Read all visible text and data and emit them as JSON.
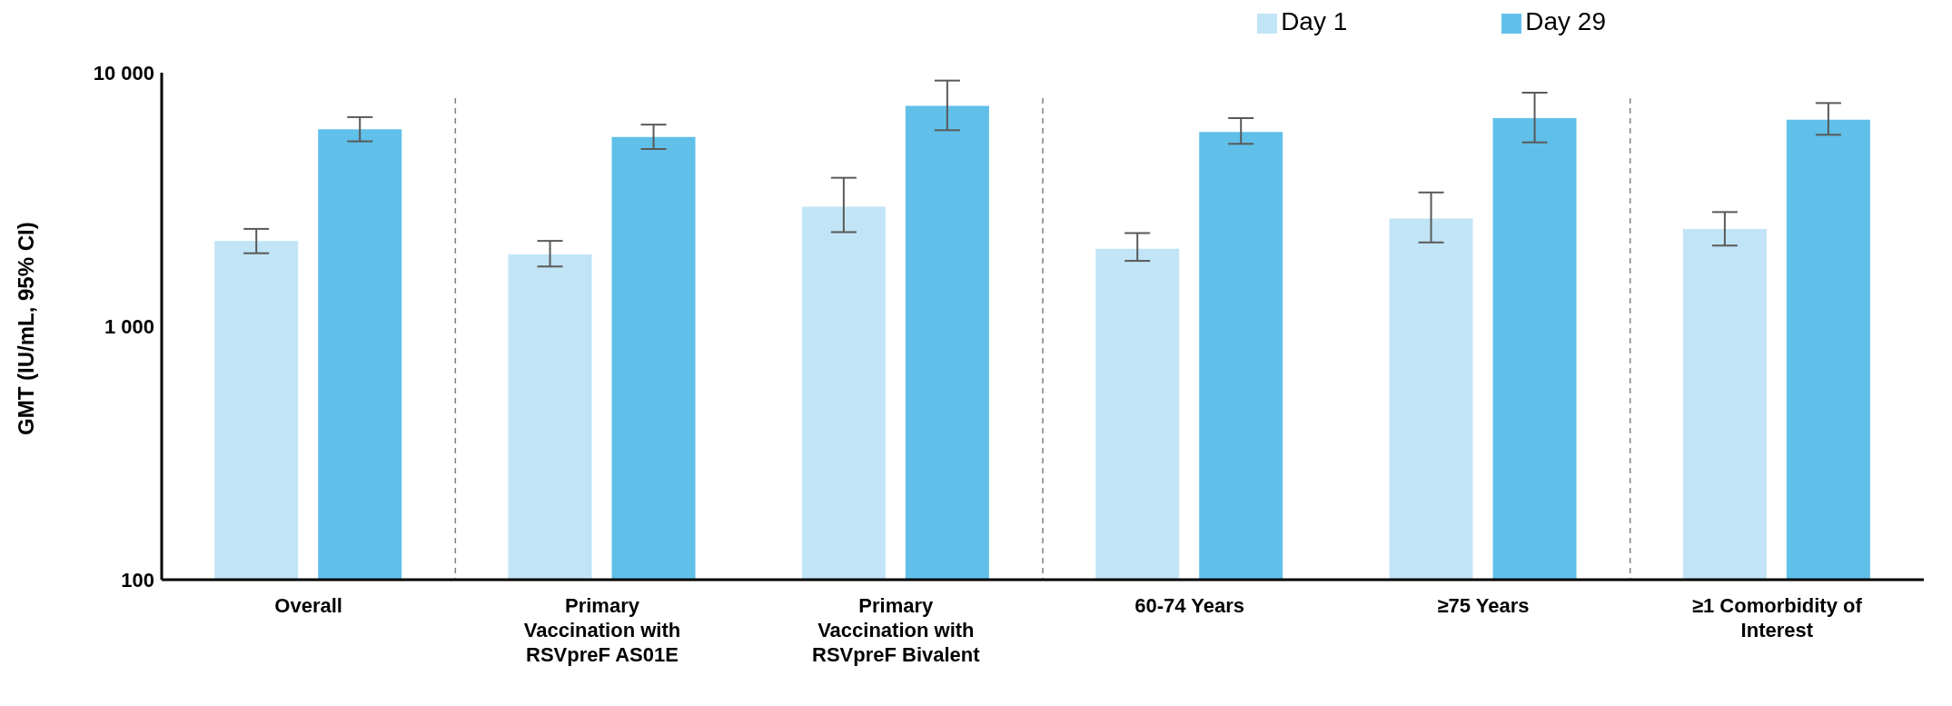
{
  "chart_data": {
    "type": "bar",
    "ylabel": "GMT (IU/mL, 95% CI)",
    "categories": [
      "Overall",
      "Primary Vaccination with RSVpreF AS01E",
      "Primary Vaccination with RSVpreF Bivalent",
      "60-74 Years",
      "≥75 Years",
      "≥1 Comorbidity of Interest"
    ],
    "series": [
      {
        "name": "Day 1",
        "color": "#c1e5f6",
        "values": [
          2170,
          1920,
          2960,
          2020,
          2660,
          2420
        ],
        "errors": [
          [
            1940,
            2420
          ],
          [
            1720,
            2170
          ],
          [
            2350,
            3850
          ],
          [
            1810,
            2330
          ],
          [
            2140,
            3370
          ],
          [
            2080,
            2820
          ]
        ]
      },
      {
        "name": "Day 29",
        "color": "#60c0e9",
        "values": [
          5980,
          5580,
          7400,
          5840,
          6620,
          6520
        ],
        "errors": [
          [
            5360,
            6680
          ],
          [
            5000,
            6240
          ],
          [
            5930,
            9310
          ],
          [
            5240,
            6620
          ],
          [
            5310,
            8340
          ],
          [
            5690,
            7590
          ]
        ]
      }
    ],
    "log": true,
    "ylim": [
      100,
      10000
    ],
    "yticks": [
      100,
      {
        "value": 1000,
        "label": "1 000"
      },
      {
        "value": 10000,
        "label": "10 000"
      }
    ],
    "grid": false,
    "legend": "top right"
  }
}
